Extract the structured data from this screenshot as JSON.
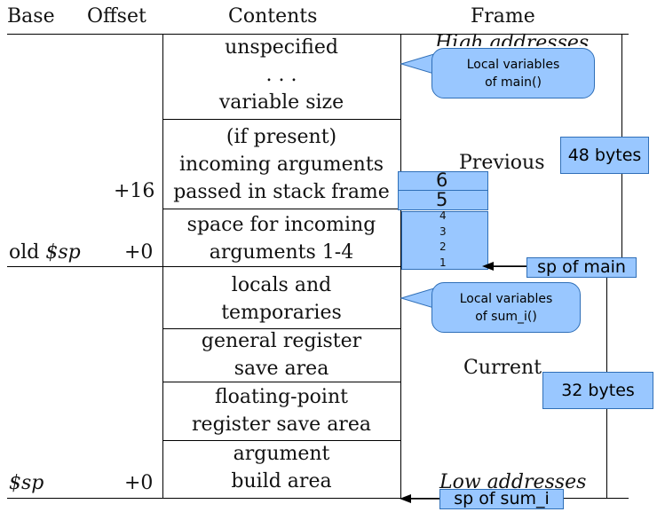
{
  "headers": {
    "base": "Base",
    "offset": "Offset",
    "contents": "Contents",
    "frame": "Frame"
  },
  "cells": [
    {
      "lines": [
        "unspecified",
        ". . .",
        "variable size"
      ]
    },
    {
      "lines": [
        "(if present)",
        "incoming arguments",
        "passed in stack frame"
      ]
    },
    {
      "lines": [
        "space for incoming",
        "arguments 1-4"
      ]
    },
    {
      "lines": [
        "locals and",
        "temporaries"
      ]
    },
    {
      "lines": [
        "general register",
        "save area"
      ]
    },
    {
      "lines": [
        "floating-point",
        "register save area"
      ]
    },
    {
      "lines": [
        "argument",
        "build area"
      ]
    }
  ],
  "offsets": {
    "plus16": "+16",
    "plus0_old": "+0",
    "plus0_sp": "+0"
  },
  "bases": {
    "old_sp_prefix": "old ",
    "old_sp_var": "$sp",
    "sp_var": "$sp"
  },
  "frame_labels": {
    "high": "High addresses",
    "previous": "Previous",
    "current": "Current",
    "low": "Low addresses"
  },
  "callouts": {
    "main_locals": [
      "Local variables",
      "of main()"
    ],
    "sum_locals": [
      "Local variables",
      "of sum_i()"
    ],
    "bytes_48": "48 bytes",
    "bytes_32": "32 bytes",
    "sp_main": "sp of main",
    "sp_sum": "sp of sum_i"
  },
  "stack_args": {
    "big": [
      "6",
      "5"
    ],
    "small": [
      "4",
      "3",
      "2",
      "1"
    ]
  },
  "colors": {
    "callout_fill": "#99c7ff",
    "callout_border": "#2f6fb8"
  }
}
